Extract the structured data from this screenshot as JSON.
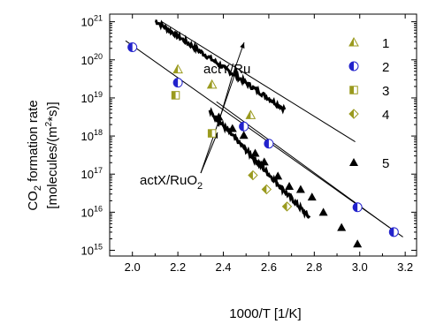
{
  "chart_data": {
    "type": "scatter",
    "xlabel": "1000/T [1/K]",
    "ylabel_line1": "CO",
    "ylabel_sub": "2",
    "ylabel_rest": " formation rate",
    "ylabel_line2": "[molecules/(m",
    "ylabel_sup": "2",
    "ylabel_line2_end": "*s)]",
    "xlim": [
      1.9,
      3.25
    ],
    "ylim_exp": [
      14.85,
      21.2
    ],
    "y_scale": "log",
    "x_ticks": [
      "2.0",
      "2.2",
      "2.4",
      "2.6",
      "2.8",
      "3.0",
      "3.2"
    ],
    "x_tick_values": [
      2.0,
      2.2,
      2.4,
      2.6,
      2.8,
      3.0,
      3.2
    ],
    "y_ticks": [
      {
        "exp": 15,
        "base": "10",
        "sup": "15"
      },
      {
        "exp": 16,
        "base": "10",
        "sup": "16"
      },
      {
        "exp": 17,
        "base": "10",
        "sup": "17"
      },
      {
        "exp": 18,
        "base": "10",
        "sup": "18"
      },
      {
        "exp": 19,
        "base": "10",
        "sup": "19"
      },
      {
        "exp": 20,
        "base": "10",
        "sup": "20"
      },
      {
        "exp": 21,
        "base": "10",
        "sup": "21"
      }
    ],
    "annotations": [
      {
        "id": "actY",
        "text": "actY/Ru"
      },
      {
        "id": "actX",
        "text_main": "actX/RuO",
        "text_sub": "2"
      }
    ],
    "series": [
      {
        "name": "1",
        "marker": "triangle-half",
        "color": "#9a9a1e",
        "points": [
          [
            2.2,
            19.75
          ],
          [
            2.35,
            19.35
          ],
          [
            2.52,
            18.55
          ]
        ]
      },
      {
        "name": "2",
        "marker": "circle-half",
        "color": "#2222cc",
        "points": [
          [
            2.0,
            20.33
          ],
          [
            2.2,
            19.4
          ],
          [
            2.49,
            18.25
          ],
          [
            2.6,
            17.8
          ],
          [
            2.99,
            16.13
          ],
          [
            3.15,
            15.48
          ]
        ]
      },
      {
        "name": "3",
        "marker": "square-half",
        "color": "#9a9a1e",
        "points": [
          [
            2.19,
            19.07
          ],
          [
            2.35,
            18.07
          ]
        ]
      },
      {
        "name": "4",
        "marker": "diamond-half",
        "color": "#9a9a1e",
        "points": [
          [
            2.53,
            16.97
          ],
          [
            2.59,
            16.6
          ],
          [
            2.68,
            16.15
          ]
        ]
      },
      {
        "name": "5",
        "marker": "triangle",
        "color": "#000000",
        "points": [
          [
            2.38,
            18.5
          ],
          [
            2.44,
            18.2
          ],
          [
            2.49,
            18.02
          ],
          [
            2.54,
            17.55
          ],
          [
            2.58,
            17.32
          ],
          [
            2.64,
            16.95
          ],
          [
            2.69,
            16.68
          ],
          [
            2.74,
            16.6
          ],
          [
            2.79,
            16.4
          ],
          [
            2.84,
            16.0
          ],
          [
            2.92,
            15.6
          ],
          [
            2.99,
            15.17
          ]
        ]
      }
    ],
    "fit_lines": [
      {
        "name": "fit-actY",
        "x": [
          2.13,
          2.98
        ],
        "y": [
          21.0,
          17.85
        ]
      },
      {
        "name": "fit-series2",
        "x": [
          1.97,
          3.19
        ],
        "y": [
          20.5,
          15.35
        ]
      },
      {
        "name": "fit-actX",
        "x": [
          2.37,
          3.13
        ],
        "y": [
          18.9,
          15.6
        ]
      }
    ],
    "noisy_curves": [
      {
        "name": "actY-curve",
        "x_range": [
          2.1,
          2.67
        ],
        "y_start": 21.03,
        "y_end": 18.7
      },
      {
        "name": "actX-curve",
        "x_range": [
          2.34,
          2.78
        ],
        "y_start": 18.65,
        "y_end": 15.85
      }
    ]
  }
}
